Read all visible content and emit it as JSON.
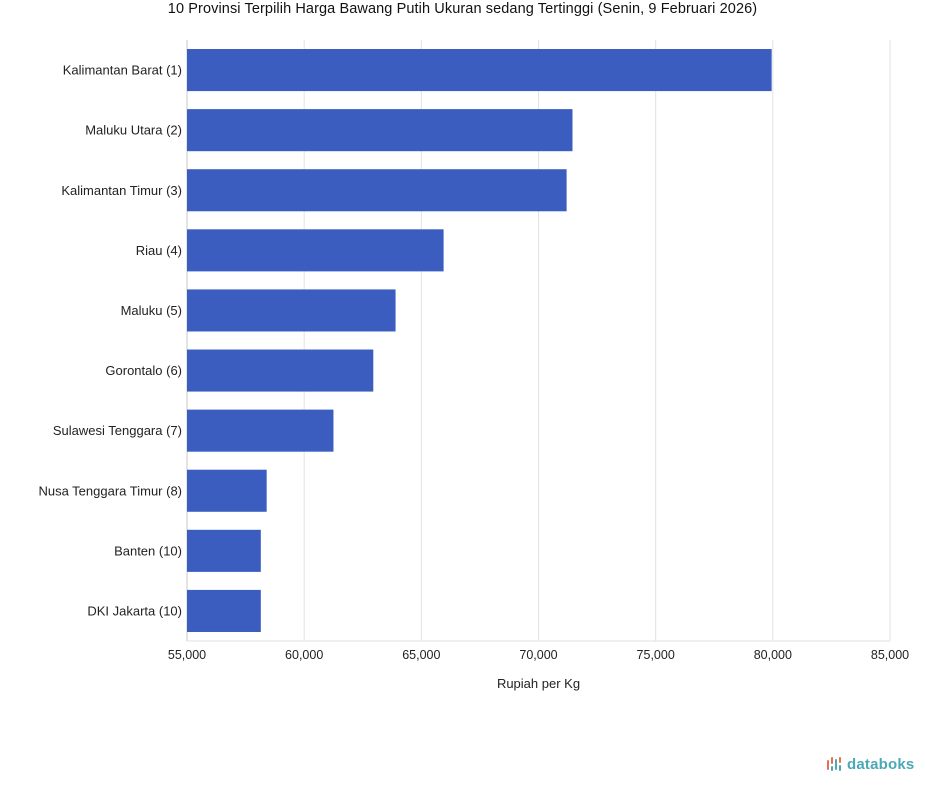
{
  "chart_data": {
    "type": "bar",
    "orientation": "horizontal",
    "title": "10 Provinsi Terpilih Harga Bawang Putih Ukuran sedang Tertinggi (Senin, 9 Februari 2026)",
    "xlabel": "Rupiah per Kg",
    "ylabel": "",
    "categories": [
      "Kalimantan Barat (1)",
      "Maluku Utara (2)",
      "Kalimantan Timur (3)",
      "Riau (4)",
      "Maluku (5)",
      "Gorontalo (6)",
      "Sulawesi Tenggara (7)",
      "Nusa Tenggara Timur (8)",
      "Banten (10)",
      "DKI Jakarta (10)"
    ],
    "values": [
      79950,
      71450,
      71200,
      65950,
      63900,
      62950,
      61250,
      58400,
      58150,
      58150
    ],
    "xlim": [
      55000,
      85000
    ],
    "xticks": [
      55000,
      60000,
      65000,
      70000,
      75000,
      80000,
      85000
    ],
    "xtick_labels": [
      "55,000",
      "60,000",
      "65,000",
      "70,000",
      "75,000",
      "80,000",
      "85,000"
    ],
    "bar_color": "#3b5dc0",
    "grid": true,
    "legend": "none"
  },
  "branding": {
    "logo_text": "databoks",
    "logo_color": "#4aa8b7",
    "logo_icon": "databoks-bars-icon"
  }
}
